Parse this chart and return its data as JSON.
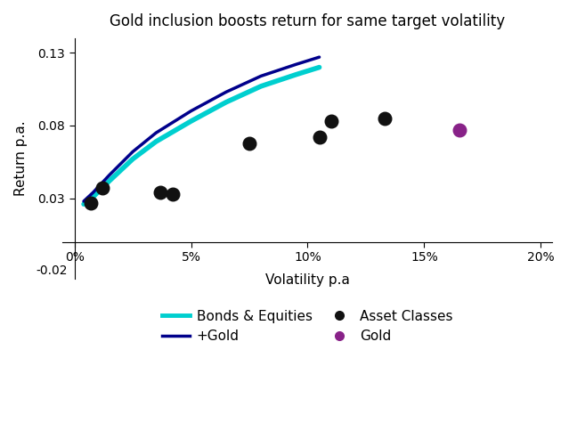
{
  "title": "Gold inclusion boosts return for same target volatility",
  "xlabel": "Volatility p.a",
  "ylabel": "Return p.a.",
  "xlim": [
    -0.005,
    0.205
  ],
  "ylim": [
    -0.025,
    0.14
  ],
  "xticks": [
    0.0,
    0.05,
    0.1,
    0.15,
    0.2
  ],
  "xtick_labels": [
    "0%",
    "5%",
    "10%",
    "15%",
    "20%"
  ],
  "yticks": [
    0.03,
    0.08,
    0.13
  ],
  "ytick_labels": [
    "0.03",
    "0.08",
    "0.13"
  ],
  "frontier_bonds_x": [
    0.004,
    0.008,
    0.015,
    0.025,
    0.035,
    0.05,
    0.065,
    0.08,
    0.095,
    0.105
  ],
  "frontier_bonds_y": [
    0.026,
    0.031,
    0.042,
    0.057,
    0.069,
    0.083,
    0.096,
    0.107,
    0.115,
    0.12
  ],
  "frontier_gold_x": [
    0.004,
    0.008,
    0.015,
    0.025,
    0.035,
    0.05,
    0.065,
    0.08,
    0.095,
    0.105
  ],
  "frontier_gold_y": [
    0.028,
    0.034,
    0.046,
    0.062,
    0.075,
    0.09,
    0.103,
    0.114,
    0.122,
    0.127
  ],
  "asset_x": [
    0.007,
    0.012,
    0.037,
    0.042,
    0.075,
    0.105,
    0.11,
    0.133
  ],
  "asset_y": [
    0.027,
    0.037,
    0.034,
    0.033,
    0.068,
    0.072,
    0.083,
    0.085
  ],
  "gold_x": [
    0.165
  ],
  "gold_y": [
    0.077
  ],
  "bonds_color": "#00CFCF",
  "gold_line_color": "#00008B",
  "asset_color": "#111111",
  "gold_dot_color": "#882288",
  "background_color": "#ffffff",
  "title_fontsize": 12,
  "axis_fontsize": 11,
  "tick_fontsize": 10,
  "legend_fontsize": 11
}
